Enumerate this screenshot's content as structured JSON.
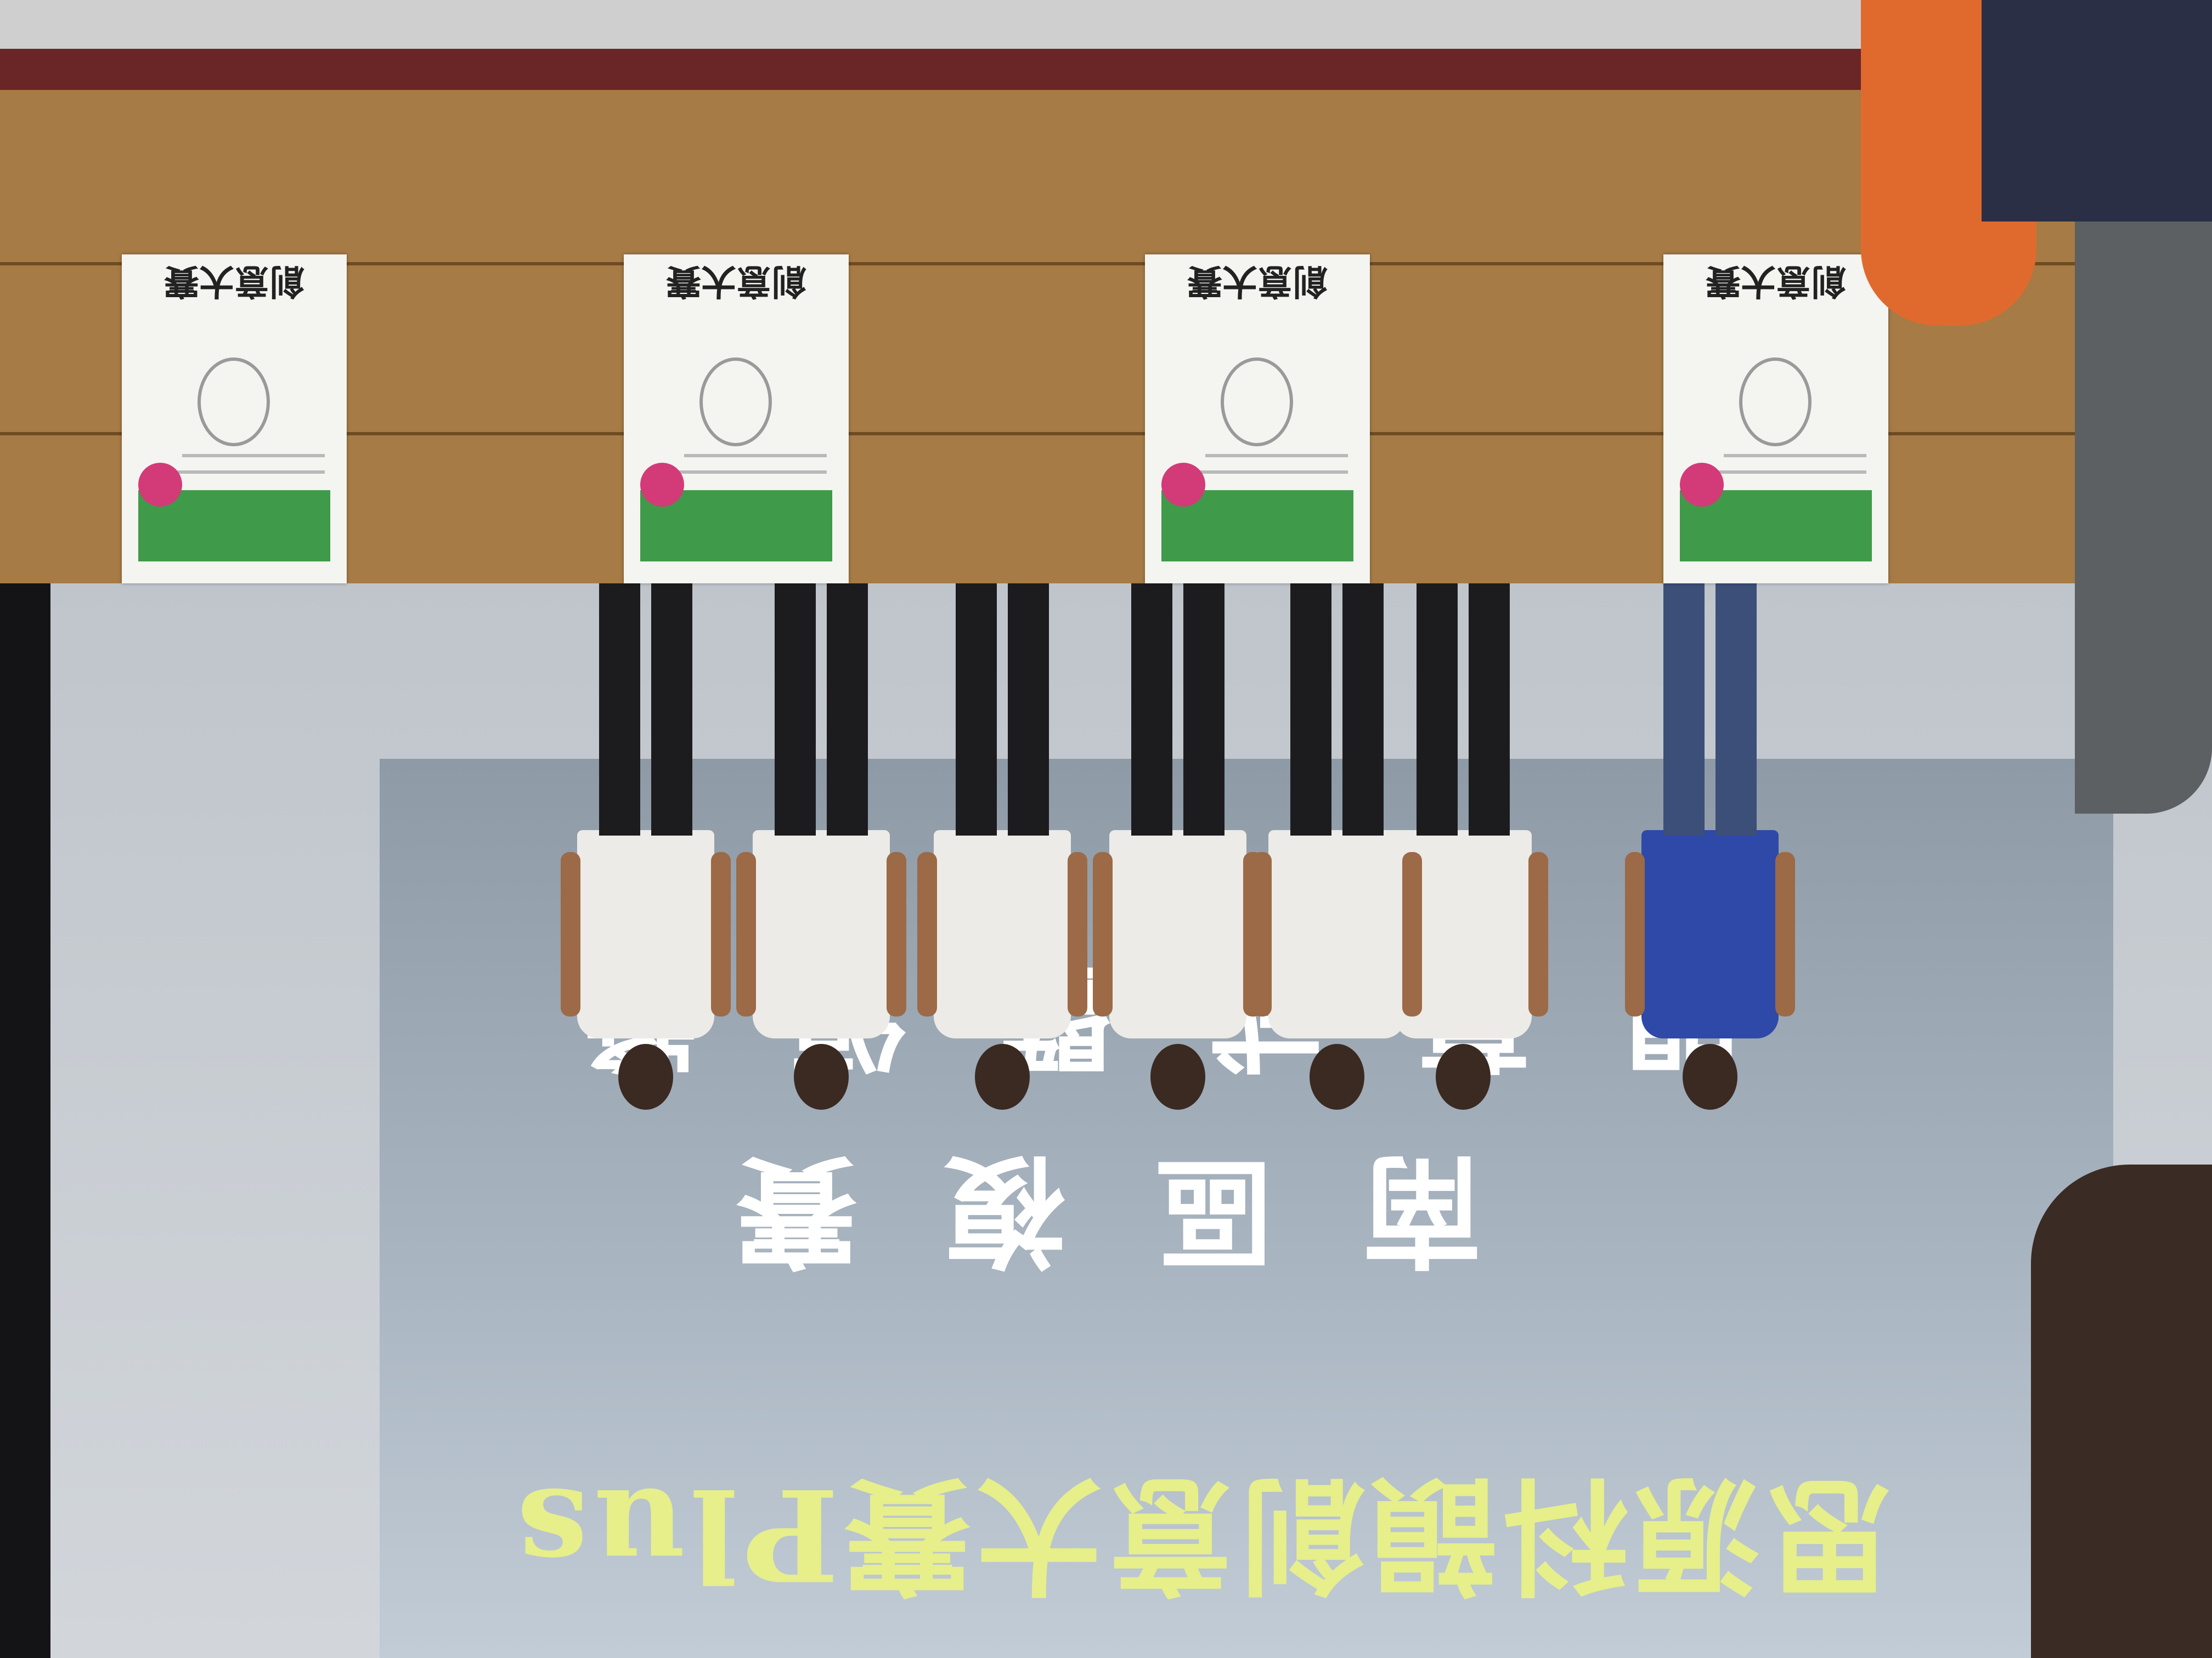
{
  "screen": {
    "event_title": "思源科韻創意大賽Plus",
    "line_1": "南區複賽",
    "line_2": "開幕式暨頒獎"
  },
  "posters": [
    {
      "title": "創意大賽"
    },
    {
      "title": "創意大賽"
    },
    {
      "title": "創意大賽"
    },
    {
      "title": "創意大賽"
    }
  ],
  "people_count": 7,
  "colors": {
    "screen_text": "#ffffff",
    "event_title": "#e6ef8a",
    "table": "#a67b45",
    "poster_band": "#3f9a4a"
  }
}
